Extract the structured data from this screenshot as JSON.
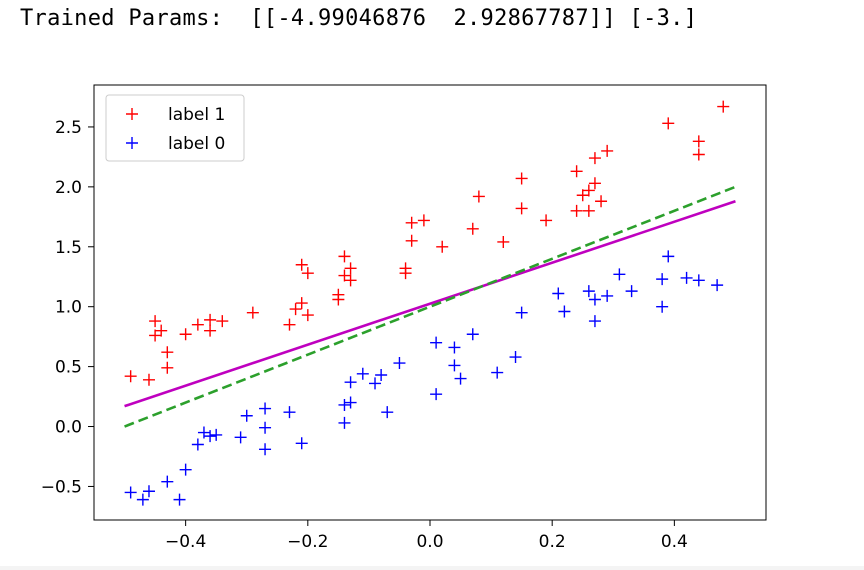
{
  "output_text": "Trained Params:  [[-4.99046876  2.92867787]] [-3.]",
  "chart_data": {
    "type": "scatter",
    "xlim": [
      -0.55,
      0.55
    ],
    "ylim": [
      -0.78,
      2.85
    ],
    "xticks": [
      -0.4,
      -0.2,
      0.0,
      0.2,
      0.4
    ],
    "xtick_labels": [
      "−0.4",
      "−0.2",
      "0.0",
      "0.2",
      "0.4"
    ],
    "yticks": [
      -0.5,
      0.0,
      0.5,
      1.0,
      1.5,
      2.0,
      2.5
    ],
    "ytick_labels": [
      "−0.5",
      "0.0",
      "0.5",
      "1.0",
      "1.5",
      "2.0",
      "2.5"
    ],
    "grid": false,
    "legend_position": "top-left",
    "series": [
      {
        "name": "label 1",
        "marker": "+",
        "color": "#ff0000",
        "points": [
          [
            -0.49,
            0.42
          ],
          [
            -0.46,
            0.39
          ],
          [
            -0.45,
            0.88
          ],
          [
            -0.45,
            0.76
          ],
          [
            -0.44,
            0.8
          ],
          [
            -0.43,
            0.62
          ],
          [
            -0.43,
            0.49
          ],
          [
            -0.4,
            0.77
          ],
          [
            -0.38,
            0.85
          ],
          [
            -0.36,
            0.89
          ],
          [
            -0.36,
            0.8
          ],
          [
            -0.34,
            0.88
          ],
          [
            -0.29,
            0.95
          ],
          [
            -0.23,
            0.85
          ],
          [
            -0.22,
            0.98
          ],
          [
            -0.21,
            1.03
          ],
          [
            -0.21,
            1.35
          ],
          [
            -0.2,
            1.28
          ],
          [
            -0.2,
            0.93
          ],
          [
            -0.15,
            1.1
          ],
          [
            -0.15,
            1.06
          ],
          [
            -0.14,
            1.42
          ],
          [
            -0.14,
            1.26
          ],
          [
            -0.13,
            1.32
          ],
          [
            -0.13,
            1.22
          ],
          [
            -0.04,
            1.28
          ],
          [
            -0.04,
            1.32
          ],
          [
            -0.03,
            1.7
          ],
          [
            -0.03,
            1.55
          ],
          [
            -0.01,
            1.72
          ],
          [
            0.02,
            1.5
          ],
          [
            0.07,
            1.65
          ],
          [
            0.08,
            1.92
          ],
          [
            0.12,
            1.54
          ],
          [
            0.15,
            2.07
          ],
          [
            0.15,
            1.82
          ],
          [
            0.19,
            1.72
          ],
          [
            0.24,
            1.8
          ],
          [
            0.24,
            2.13
          ],
          [
            0.25,
            1.93
          ],
          [
            0.26,
            1.97
          ],
          [
            0.26,
            1.8
          ],
          [
            0.27,
            2.24
          ],
          [
            0.27,
            2.03
          ],
          [
            0.28,
            1.88
          ],
          [
            0.29,
            2.3
          ],
          [
            0.39,
            2.53
          ],
          [
            0.44,
            2.38
          ],
          [
            0.44,
            2.27
          ],
          [
            0.48,
            2.67
          ]
        ]
      },
      {
        "name": "label 0",
        "marker": "+",
        "color": "#0000ff",
        "points": [
          [
            -0.49,
            -0.55
          ],
          [
            -0.47,
            -0.61
          ],
          [
            -0.46,
            -0.54
          ],
          [
            -0.43,
            -0.46
          ],
          [
            -0.41,
            -0.61
          ],
          [
            -0.4,
            -0.36
          ],
          [
            -0.38,
            -0.15
          ],
          [
            -0.37,
            -0.05
          ],
          [
            -0.36,
            -0.08
          ],
          [
            -0.35,
            -0.07
          ],
          [
            -0.31,
            -0.09
          ],
          [
            -0.3,
            0.09
          ],
          [
            -0.27,
            0.15
          ],
          [
            -0.27,
            -0.01
          ],
          [
            -0.27,
            -0.19
          ],
          [
            -0.23,
            0.12
          ],
          [
            -0.21,
            -0.14
          ],
          [
            -0.14,
            0.18
          ],
          [
            -0.14,
            0.03
          ],
          [
            -0.13,
            0.2
          ],
          [
            -0.13,
            0.37
          ],
          [
            -0.11,
            0.44
          ],
          [
            -0.09,
            0.36
          ],
          [
            -0.08,
            0.43
          ],
          [
            -0.07,
            0.12
          ],
          [
            -0.05,
            0.53
          ],
          [
            0.01,
            0.7
          ],
          [
            0.01,
            0.27
          ],
          [
            0.04,
            0.66
          ],
          [
            0.04,
            0.51
          ],
          [
            0.05,
            0.4
          ],
          [
            0.07,
            0.77
          ],
          [
            0.11,
            0.45
          ],
          [
            0.14,
            0.58
          ],
          [
            0.15,
            0.95
          ],
          [
            0.21,
            1.11
          ],
          [
            0.22,
            0.96
          ],
          [
            0.26,
            1.13
          ],
          [
            0.27,
            0.88
          ],
          [
            0.27,
            1.06
          ],
          [
            0.29,
            1.09
          ],
          [
            0.31,
            1.27
          ],
          [
            0.33,
            1.13
          ],
          [
            0.38,
            1.23
          ],
          [
            0.38,
            1.0
          ],
          [
            0.39,
            1.42
          ],
          [
            0.42,
            1.24
          ],
          [
            0.44,
            1.22
          ],
          [
            0.47,
            1.18
          ]
        ]
      }
    ],
    "lines": [
      {
        "style": "solid",
        "color": "#bf00bf",
        "x": [
          -0.5,
          0.5
        ],
        "y": [
          0.17,
          1.88
        ]
      },
      {
        "style": "dashed",
        "color": "#2ca02c",
        "x": [
          -0.5,
          0.5
        ],
        "y": [
          0.0,
          2.0
        ]
      }
    ]
  }
}
